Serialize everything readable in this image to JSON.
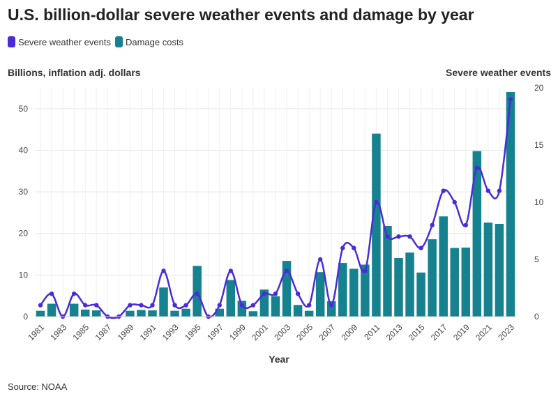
{
  "title": "U.S. billion-dollar severe weather events and damage by year",
  "legend": [
    {
      "label": "Severe weather events",
      "color": "#4a2bd9"
    },
    {
      "label": "Damage costs",
      "color": "#17828f"
    }
  ],
  "source": "Source: NOAA",
  "chart_data": {
    "type": "bar",
    "title": "U.S. billion-dollar severe weather events and damage by year",
    "xlabel": "Year",
    "ylabel": "Billions, inflation adj. dollars",
    "y2label": "Severe weather events",
    "ylim": [
      0,
      55
    ],
    "y2lim": [
      0,
      20
    ],
    "yticks": [
      0,
      10,
      20,
      30,
      40,
      50
    ],
    "y2ticks": [
      0,
      5,
      10,
      15,
      20
    ],
    "legend_position": "top-left",
    "grid": true,
    "categories": [
      "1981",
      "1982",
      "1983",
      "1984",
      "1985",
      "1986",
      "1987",
      "1988",
      "1989",
      "1990",
      "1991",
      "1992",
      "1993",
      "1994",
      "1995",
      "1996",
      "1997",
      "1998",
      "1999",
      "2000",
      "2001",
      "2002",
      "2003",
      "2004",
      "2005",
      "2006",
      "2007",
      "2008",
      "2009",
      "2010",
      "2011",
      "2012",
      "2013",
      "2014",
      "2015",
      "2016",
      "2017",
      "2018",
      "2019",
      "2020",
      "2021",
      "2022",
      "2023"
    ],
    "xtick_labels": [
      "1981",
      "1983",
      "1985",
      "1987",
      "1989",
      "1991",
      "1993",
      "1995",
      "1997",
      "1999",
      "2001",
      "2003",
      "2005",
      "2007",
      "2009",
      "2011",
      "2013",
      "2015",
      "2017",
      "2019",
      "2021",
      "2023"
    ],
    "series": [
      {
        "name": "Damage costs",
        "type": "bar",
        "axis": "left",
        "color": "#17828f",
        "values": [
          1.4,
          3.1,
          0,
          3.1,
          1.7,
          1.5,
          0,
          0,
          1.4,
          1.6,
          1.5,
          7.0,
          1.4,
          1.9,
          12.2,
          0,
          1.9,
          8.8,
          3.8,
          1.3,
          6.5,
          4.9,
          13.4,
          2.8,
          1.4,
          10.7,
          3.7,
          12.9,
          11.5,
          12.5,
          44.0,
          21.8,
          14.1,
          15.4,
          10.6,
          18.6,
          24.1,
          16.5,
          16.6,
          39.8,
          22.6,
          22.3,
          54.0
        ]
      },
      {
        "name": "Severe weather events",
        "type": "line",
        "axis": "right",
        "color": "#4a2bd9",
        "values": [
          1,
          2,
          0,
          2,
          1,
          1,
          0,
          0,
          1,
          1,
          1,
          4,
          1,
          1,
          2,
          0,
          1,
          4,
          1,
          1,
          2,
          2,
          4,
          2,
          1,
          5,
          1,
          6,
          6,
          4,
          10,
          7,
          7,
          7,
          6,
          8,
          11,
          10,
          8,
          13,
          11,
          11,
          19
        ]
      }
    ]
  }
}
